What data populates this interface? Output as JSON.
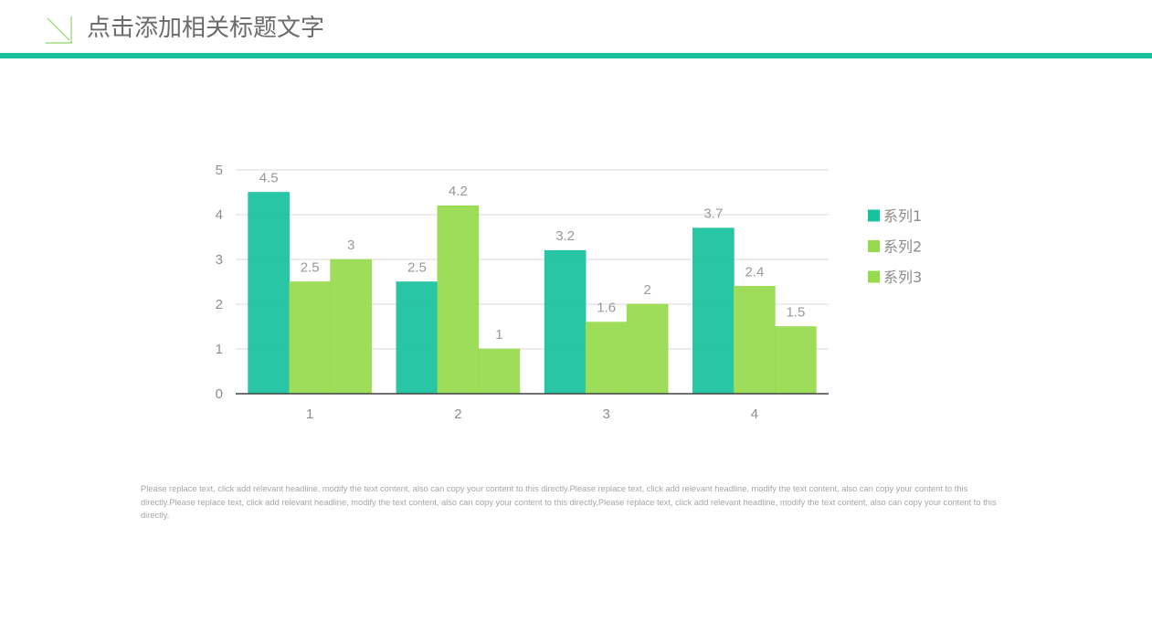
{
  "header": {
    "title": "点击添加相关标题文字",
    "accent_color": "#19BF9C",
    "icon": "diagonal-arrow-icon",
    "icon_color": "#8ED36A"
  },
  "body": {
    "text": "Please replace text, click add relevant headline, modify the text content, also can copy your content to this directly.Please replace text, click add relevant headline, modify the text content, also can copy your content to this directly.Please replace text, click add relevant headline, modify the text content, also can copy your content to this directly.Please replace text, click add relevant headline, modify the text content, also can copy your content to this directly."
  },
  "chart_data": {
    "type": "bar",
    "categories": [
      "1",
      "2",
      "3",
      "4"
    ],
    "series": [
      {
        "name": "系列1",
        "values": [
          4.5,
          2.5,
          3.2,
          3.7
        ],
        "color": "#19C29F"
      },
      {
        "name": "系列2",
        "values": [
          2.5,
          4.2,
          1.6,
          2.4
        ],
        "color": "#97DA4E"
      },
      {
        "name": "系列3",
        "values": [
          3,
          1,
          2,
          1.5
        ],
        "color": "#97DA4E"
      }
    ],
    "ylim": [
      0,
      5
    ],
    "yticks": [
      "0",
      "1",
      "2",
      "3",
      "4",
      "5"
    ],
    "grid": true,
    "data_labels": true,
    "legend_position": "right"
  }
}
